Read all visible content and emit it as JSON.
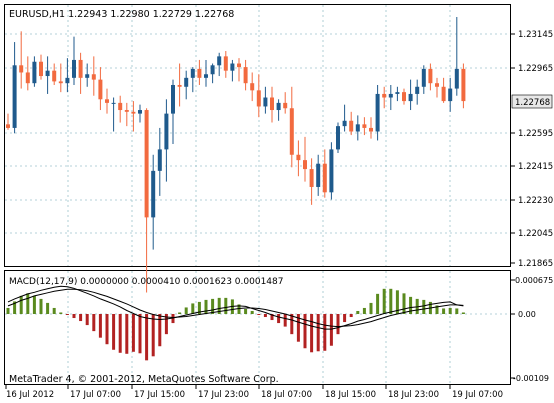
{
  "window": {
    "header_text": "EURUSD,H1  1.22943 1.22980 1.22729 1.22768",
    "current_price_label": "1.22768",
    "watermark": "MetaTrader 4, © 2001-2012, MetaQuotes Software Corp."
  },
  "price_axis": {
    "ticks": [
      "1.23145",
      "1.22965",
      "1.22595",
      "1.22415",
      "1.22230",
      "1.22045",
      "1.21865"
    ]
  },
  "macd": {
    "label": "MACD(12,17,9) 0.0000000 0.0000410 0.0001623 0.0001487",
    "axis_ticks": [
      "0.000675",
      "0.00",
      "-0.00109"
    ]
  },
  "time_axis": {
    "labels": [
      "16 Jul 2012",
      "17 Jul 07:00",
      "17 Jul 15:00",
      "17 Jul 23:00",
      "18 Jul 07:00",
      "18 Jul 15:00",
      "18 Jul 23:00",
      "19 Jul 07:00"
    ]
  },
  "colors": {
    "bull": "#1f5a8c",
    "bear": "#f26a3f",
    "histogram_positive": "#5a8a1e",
    "histogram_negative": "#b22222",
    "grid": "#9cc4cc",
    "line": "#000000",
    "price_badge_bg": "#e8e8e8"
  },
  "chart_data": {
    "type": "candlestick",
    "title": "EURUSD,H1",
    "x": [
      "16 Jul 2012",
      "17 Jul 07:00",
      "17 Jul 15:00",
      "17 Jul 23:00",
      "18 Jul 07:00",
      "18 Jul 15:00",
      "18 Jul 23:00",
      "19 Jul 07:00"
    ],
    "ylim": [
      1.218,
      1.2335
    ],
    "candles": [
      {
        "o": 1.2264,
        "h": 1.227,
        "l": 1.2261,
        "c": 1.2262
      },
      {
        "o": 1.2262,
        "h": 1.231,
        "l": 1.2259,
        "c": 1.2297
      },
      {
        "o": 1.2297,
        "h": 1.2316,
        "l": 1.2284,
        "c": 1.2293
      },
      {
        "o": 1.2293,
        "h": 1.2302,
        "l": 1.2283,
        "c": 1.2287
      },
      {
        "o": 1.2287,
        "h": 1.2302,
        "l": 1.2285,
        "c": 1.2299
      },
      {
        "o": 1.2299,
        "h": 1.2303,
        "l": 1.2289,
        "c": 1.2291
      },
      {
        "o": 1.2291,
        "h": 1.2302,
        "l": 1.2281,
        "c": 1.2294
      },
      {
        "o": 1.2294,
        "h": 1.2298,
        "l": 1.2286,
        "c": 1.2288
      },
      {
        "o": 1.2288,
        "h": 1.2298,
        "l": 1.2282,
        "c": 1.2287
      },
      {
        "o": 1.2287,
        "h": 1.2301,
        "l": 1.2282,
        "c": 1.229
      },
      {
        "o": 1.229,
        "h": 1.2313,
        "l": 1.2286,
        "c": 1.23
      },
      {
        "o": 1.23,
        "h": 1.2304,
        "l": 1.2281,
        "c": 1.229
      },
      {
        "o": 1.229,
        "h": 1.2298,
        "l": 1.2285,
        "c": 1.2292
      },
      {
        "o": 1.2292,
        "h": 1.2302,
        "l": 1.228,
        "c": 1.2289
      },
      {
        "o": 1.2289,
        "h": 1.2296,
        "l": 1.2272,
        "c": 1.2278
      },
      {
        "o": 1.2278,
        "h": 1.2284,
        "l": 1.227,
        "c": 1.2276
      },
      {
        "o": 1.2276,
        "h": 1.2279,
        "l": 1.226,
        "c": 1.2276
      },
      {
        "o": 1.2276,
        "h": 1.228,
        "l": 1.2265,
        "c": 1.2272
      },
      {
        "o": 1.2272,
        "h": 1.2276,
        "l": 1.2263,
        "c": 1.2271
      },
      {
        "o": 1.2271,
        "h": 1.2277,
        "l": 1.226,
        "c": 1.227
      },
      {
        "o": 1.227,
        "h": 1.2275,
        "l": 1.2265,
        "c": 1.2272
      },
      {
        "o": 1.2272,
        "h": 1.2273,
        "l": 1.217,
        "c": 1.2212
      },
      {
        "o": 1.2212,
        "h": 1.2247,
        "l": 1.2194,
        "c": 1.2238
      },
      {
        "o": 1.2238,
        "h": 1.2262,
        "l": 1.2224,
        "c": 1.225
      },
      {
        "o": 1.225,
        "h": 1.2278,
        "l": 1.2232,
        "c": 1.227
      },
      {
        "o": 1.227,
        "h": 1.2289,
        "l": 1.2253,
        "c": 1.2286
      },
      {
        "o": 1.2286,
        "h": 1.2298,
        "l": 1.2274,
        "c": 1.2285
      },
      {
        "o": 1.2285,
        "h": 1.2294,
        "l": 1.2278,
        "c": 1.229
      },
      {
        "o": 1.229,
        "h": 1.2296,
        "l": 1.2282,
        "c": 1.2295
      },
      {
        "o": 1.2295,
        "h": 1.23,
        "l": 1.2286,
        "c": 1.229
      },
      {
        "o": 1.229,
        "h": 1.23,
        "l": 1.2285,
        "c": 1.2292
      },
      {
        "o": 1.2292,
        "h": 1.2298,
        "l": 1.2287,
        "c": 1.2297
      },
      {
        "o": 1.2297,
        "h": 1.2304,
        "l": 1.2291,
        "c": 1.2302
      },
      {
        "o": 1.2302,
        "h": 1.2305,
        "l": 1.229,
        "c": 1.2294
      },
      {
        "o": 1.2294,
        "h": 1.23,
        "l": 1.2288,
        "c": 1.2298
      },
      {
        "o": 1.2298,
        "h": 1.2301,
        "l": 1.2288,
        "c": 1.2296
      },
      {
        "o": 1.2296,
        "h": 1.23,
        "l": 1.2283,
        "c": 1.2287
      },
      {
        "o": 1.2287,
        "h": 1.2293,
        "l": 1.2277,
        "c": 1.2283
      },
      {
        "o": 1.2283,
        "h": 1.2292,
        "l": 1.2268,
        "c": 1.2274
      },
      {
        "o": 1.2274,
        "h": 1.2285,
        "l": 1.227,
        "c": 1.2279
      },
      {
        "o": 1.2279,
        "h": 1.2285,
        "l": 1.2265,
        "c": 1.2272
      },
      {
        "o": 1.2272,
        "h": 1.2278,
        "l": 1.2266,
        "c": 1.2276
      },
      {
        "o": 1.2276,
        "h": 1.2282,
        "l": 1.227,
        "c": 1.2273
      },
      {
        "o": 1.2273,
        "h": 1.2285,
        "l": 1.224,
        "c": 1.2247
      },
      {
        "o": 1.2247,
        "h": 1.2255,
        "l": 1.2235,
        "c": 1.2244
      },
      {
        "o": 1.2244,
        "h": 1.2257,
        "l": 1.2232,
        "c": 1.2239
      },
      {
        "o": 1.2239,
        "h": 1.2245,
        "l": 1.2219,
        "c": 1.2229
      },
      {
        "o": 1.2229,
        "h": 1.2247,
        "l": 1.2224,
        "c": 1.2242
      },
      {
        "o": 1.2242,
        "h": 1.225,
        "l": 1.2223,
        "c": 1.2226
      },
      {
        "o": 1.2226,
        "h": 1.2254,
        "l": 1.2222,
        "c": 1.225
      },
      {
        "o": 1.225,
        "h": 1.2265,
        "l": 1.2248,
        "c": 1.2263
      },
      {
        "o": 1.2263,
        "h": 1.2275,
        "l": 1.226,
        "c": 1.2266
      },
      {
        "o": 1.2266,
        "h": 1.2271,
        "l": 1.2258,
        "c": 1.226
      },
      {
        "o": 1.226,
        "h": 1.2269,
        "l": 1.2255,
        "c": 1.2264
      },
      {
        "o": 1.2264,
        "h": 1.2268,
        "l": 1.2258,
        "c": 1.2262
      },
      {
        "o": 1.2262,
        "h": 1.2268,
        "l": 1.2256,
        "c": 1.226
      },
      {
        "o": 1.226,
        "h": 1.2286,
        "l": 1.2255,
        "c": 1.2281
      },
      {
        "o": 1.2281,
        "h": 1.2285,
        "l": 1.2273,
        "c": 1.2279
      },
      {
        "o": 1.2279,
        "h": 1.2286,
        "l": 1.2272,
        "c": 1.2281
      },
      {
        "o": 1.2281,
        "h": 1.2285,
        "l": 1.2277,
        "c": 1.2282
      },
      {
        "o": 1.2282,
        "h": 1.2284,
        "l": 1.2275,
        "c": 1.2277
      },
      {
        "o": 1.2277,
        "h": 1.2289,
        "l": 1.2272,
        "c": 1.2281
      },
      {
        "o": 1.2281,
        "h": 1.2289,
        "l": 1.2275,
        "c": 1.2285
      },
      {
        "o": 1.2285,
        "h": 1.2297,
        "l": 1.2281,
        "c": 1.2295
      },
      {
        "o": 1.2295,
        "h": 1.2298,
        "l": 1.2283,
        "c": 1.2287
      },
      {
        "o": 1.2287,
        "h": 1.229,
        "l": 1.2279,
        "c": 1.2285
      },
      {
        "o": 1.2285,
        "h": 1.229,
        "l": 1.2276,
        "c": 1.2277
      },
      {
        "o": 1.2277,
        "h": 1.229,
        "l": 1.2271,
        "c": 1.2284
      },
      {
        "o": 1.2284,
        "h": 1.2324,
        "l": 1.228,
        "c": 1.2295
      },
      {
        "o": 1.2295,
        "h": 1.2298,
        "l": 1.2273,
        "c": 1.2277
      }
    ],
    "macd": {
      "ylim": [
        -0.00115,
        0.00075
      ],
      "histogram": [
        0.00012,
        0.00025,
        0.00036,
        0.00041,
        0.00036,
        0.0003,
        0.00022,
        0.00012,
        3e-05,
        -2e-05,
        -8e-05,
        -0.00014,
        -0.00022,
        -0.00034,
        -0.00047,
        -0.0006,
        -0.00071,
        -0.00077,
        -0.00079,
        -0.00075,
        -0.00078,
        -0.00092,
        -0.00084,
        -0.00064,
        -0.0004,
        -0.00018,
        3e-05,
        0.00013,
        0.00021,
        0.00024,
        0.00028,
        0.0003,
        0.00032,
        0.00032,
        0.00029,
        0.00019,
        0.0001,
        6e-05,
        -2e-05,
        -6e-05,
        -0.00012,
        -0.00018,
        -0.00025,
        -0.0004,
        -0.00055,
        -0.00068,
        -0.00076,
        -0.00074,
        -0.00073,
        -0.00063,
        -0.0004,
        -0.00016,
        -6e-05,
        6e-05,
        0.00012,
        0.00022,
        0.0004,
        0.0005,
        0.0005,
        0.00047,
        0.00041,
        0.00034,
        0.0003,
        0.00028,
        0.00024,
        0.00017,
        0.00011,
        0.00012,
        0.00011,
        3e-05
      ],
      "main_line": [
        0.00024,
        0.0003,
        0.00035,
        0.0004,
        0.00043,
        0.00047,
        0.0005,
        0.00053,
        0.00055,
        0.00054,
        0.00051,
        0.00046,
        0.00041,
        0.00036,
        0.0003,
        0.00025,
        0.0002,
        0.00014,
        7e-05,
        1e-05,
        -5e-05,
        -8e-05,
        -0.0001,
        -0.00011,
        -0.0001,
        -8e-05,
        -5e-05,
        -2e-05,
        1e-05,
        4e-05,
        6e-05,
        8e-05,
        0.00011,
        0.00013,
        0.00015,
        0.00016,
        0.00015,
        0.00011,
        7e-05,
        3e-05,
        -2e-05,
        -6e-05,
        -9e-05,
        -0.00012,
        -0.00016,
        -0.0002,
        -0.00024,
        -0.00027,
        -0.0003,
        -0.0003,
        -0.00027,
        -0.00023,
        -0.00019,
        -0.00014,
        -0.00011,
        -7e-05,
        -3e-05,
        1e-05,
        4e-05,
        7e-05,
        0.0001,
        0.00013,
        0.00014,
        0.00016,
        0.00019,
        0.00021,
        0.00023,
        0.00024,
        0.00018,
        0.00016
      ],
      "signal_line": [
        0.00016,
        0.00021,
        0.00027,
        0.00031,
        0.00036,
        0.00039,
        0.00042,
        0.00045,
        0.00047,
        0.00049,
        0.00049,
        0.00048,
        0.00046,
        0.00043,
        0.00039,
        0.00035,
        0.0003,
        0.00025,
        0.0002,
        0.00014,
        8e-05,
        3e-05,
        -1e-05,
        -4e-05,
        -6e-05,
        -7e-05,
        -6e-05,
        -5e-05,
        -3e-05,
        -1e-05,
        1e-05,
        3e-05,
        5e-05,
        7e-05,
        9e-05,
        0.00011,
        0.00012,
        0.00012,
        0.00011,
        9e-05,
        6e-05,
        3e-05,
        0.0,
        -4e-05,
        -8e-05,
        -0.00012,
        -0.00015,
        -0.00019,
        -0.00022,
        -0.00024,
        -0.00025,
        -0.00024,
        -0.00023,
        -0.00021,
        -0.00018,
        -0.00015,
        -0.00011,
        -7e-05,
        -3e-05,
        0.0,
        3e-05,
        6e-05,
        8e-05,
        0.0001,
        0.00012,
        0.00014,
        0.00016,
        0.00018,
        0.00018,
        0.00017
      ]
    }
  }
}
